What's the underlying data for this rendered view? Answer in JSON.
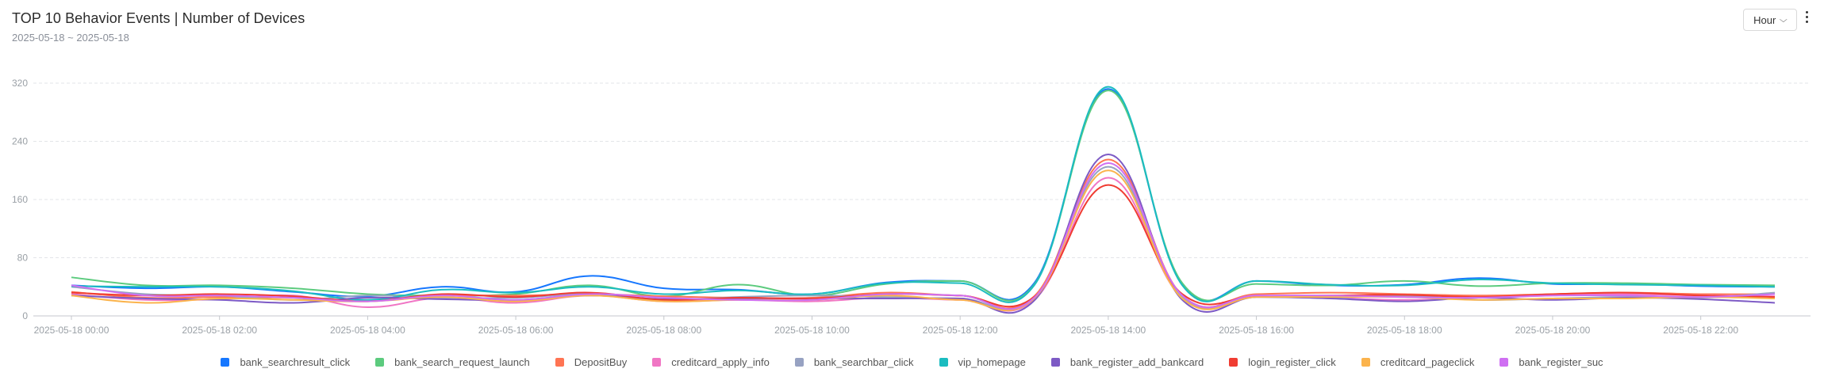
{
  "header": {
    "title": "TOP 10 Behavior Events | Number of Devices",
    "subtitle": "2025-05-18 ~ 2025-05-18",
    "granularity": "Hour",
    "chevron": "⌵"
  },
  "chart_data": {
    "type": "line",
    "title": "TOP 10 Behavior Events | Number of Devices",
    "subtitle": "2025-05-18 ~ 2025-05-18",
    "xlabel": "",
    "ylabel": "",
    "ylim": [
      0,
      320
    ],
    "yticks": [
      0,
      80,
      160,
      240,
      320
    ],
    "grid": true,
    "legend_position": "bottom",
    "x": [
      "2025-05-18 00:00",
      "2025-05-18 01:00",
      "2025-05-18 02:00",
      "2025-05-18 03:00",
      "2025-05-18 04:00",
      "2025-05-18 05:00",
      "2025-05-18 06:00",
      "2025-05-18 07:00",
      "2025-05-18 08:00",
      "2025-05-18 09:00",
      "2025-05-18 10:00",
      "2025-05-18 11:00",
      "2025-05-18 12:00",
      "2025-05-18 13:00",
      "2025-05-18 14:00",
      "2025-05-18 15:00",
      "2025-05-18 16:00",
      "2025-05-18 17:00",
      "2025-05-18 18:00",
      "2025-05-18 19:00",
      "2025-05-18 20:00",
      "2025-05-18 21:00",
      "2025-05-18 22:00",
      "2025-05-18 23:00"
    ],
    "xtick_labels": [
      "2025-05-18 00:00",
      "2025-05-18 02:00",
      "2025-05-18 04:00",
      "2025-05-18 06:00",
      "2025-05-18 08:00",
      "2025-05-18 10:00",
      "2025-05-18 12:00",
      "2025-05-18 14:00",
      "2025-05-18 16:00",
      "2025-05-18 18:00",
      "2025-05-18 20:00",
      "2025-05-18 22:00"
    ],
    "series": [
      {
        "name": "bank_searchresult_click",
        "color": "#1677ff",
        "values": [
          42,
          38,
          40,
          33,
          27,
          40,
          33,
          55,
          38,
          36,
          30,
          46,
          48,
          45,
          312,
          43,
          48,
          42,
          43,
          52,
          44,
          44,
          41,
          40
        ]
      },
      {
        "name": "bank_search_request_launch",
        "color": "#5ccb7e",
        "values": [
          53,
          42,
          42,
          38,
          30,
          28,
          30,
          42,
          27,
          43,
          28,
          44,
          48,
          43,
          310,
          45,
          44,
          42,
          48,
          41,
          45,
          45,
          43,
          42
        ]
      },
      {
        "name": "DepositBuy",
        "color": "#ff7453",
        "values": [
          33,
          25,
          26,
          25,
          22,
          28,
          28,
          30,
          27,
          25,
          25,
          32,
          28,
          27,
          215,
          28,
          30,
          32,
          30,
          28,
          30,
          32,
          30,
          30
        ]
      },
      {
        "name": "creditcard_apply_info",
        "color": "#f076c4",
        "values": [
          30,
          22,
          23,
          28,
          12,
          25,
          18,
          28,
          20,
          22,
          20,
          25,
          22,
          22,
          190,
          25,
          28,
          25,
          22,
          25,
          28,
          30,
          28,
          27
        ]
      },
      {
        "name": "bank_searchbar_click",
        "color": "#97a2c2",
        "values": [
          40,
          30,
          28,
          22,
          28,
          25,
          25,
          30,
          22,
          26,
          28,
          26,
          24,
          25,
          205,
          25,
          26,
          25,
          28,
          22,
          24,
          26,
          25,
          32
        ]
      },
      {
        "name": "vip_homepage",
        "color": "#1bbcc0",
        "values": [
          41,
          40,
          40,
          34,
          22,
          36,
          32,
          40,
          30,
          35,
          30,
          45,
          45,
          42,
          315,
          42,
          48,
          43,
          42,
          50,
          45,
          43,
          42,
          40
        ]
      },
      {
        "name": "bank_register_add_bankcard",
        "color": "#7d5ac5",
        "values": [
          28,
          24,
          22,
          18,
          25,
          23,
          22,
          28,
          23,
          24,
          24,
          24,
          24,
          21,
          222,
          22,
          26,
          24,
          20,
          25,
          22,
          25,
          23,
          18
        ]
      },
      {
        "name": "login_register_click",
        "color": "#f03c32",
        "values": [
          32,
          28,
          30,
          27,
          20,
          30,
          26,
          32,
          22,
          25,
          24,
          30,
          28,
          26,
          180,
          30,
          27,
          28,
          29,
          26,
          30,
          32,
          28,
          26
        ]
      },
      {
        "name": "creditcard_pageclick",
        "color": "#fbb34c",
        "values": [
          28,
          18,
          24,
          22,
          20,
          26,
          20,
          28,
          20,
          22,
          22,
          28,
          22,
          24,
          200,
          24,
          26,
          26,
          26,
          22,
          24,
          24,
          26,
          24
        ]
      },
      {
        "name": "bank_register_suc",
        "color": "#cf6ff2",
        "values": [
          42,
          28,
          28,
          25,
          20,
          28,
          22,
          30,
          25,
          22,
          22,
          30,
          28,
          25,
          210,
          28,
          28,
          28,
          26,
          25,
          28,
          28,
          26,
          30
        ]
      }
    ]
  }
}
